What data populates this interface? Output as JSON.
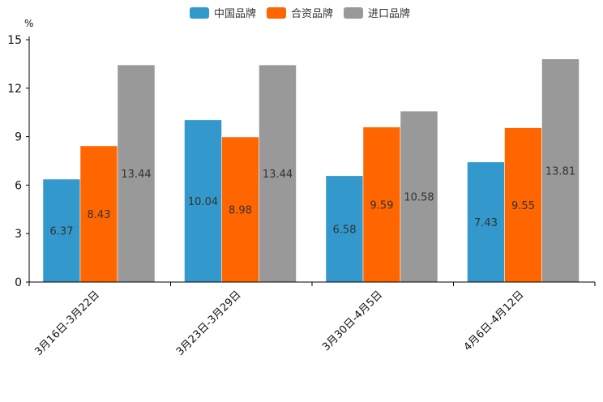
{
  "chart_data": {
    "type": "bar",
    "unit": "%",
    "categories": [
      "3月16日-3月22日",
      "3月23日-3月29日",
      "3月30日-4月5日",
      "4月6日-4月12日"
    ],
    "series": [
      {
        "name": "中国品牌",
        "color": "#3399CC",
        "values": [
          6.37,
          10.04,
          6.58,
          7.43
        ],
        "labels": [
          "6.37",
          "10.04",
          "6.58",
          "7.43"
        ]
      },
      {
        "name": "合资品牌",
        "color": "#FF6600",
        "values": [
          8.43,
          8.98,
          9.59,
          9.55
        ],
        "labels": [
          "8.43",
          "8.98",
          "9.59",
          "9.55"
        ]
      },
      {
        "name": "进口品牌",
        "color": "#999999",
        "values": [
          13.44,
          13.44,
          10.58,
          13.81
        ],
        "labels": [
          "13.44",
          "13.44",
          "10.58",
          "13.81"
        ]
      }
    ],
    "ylim": [
      0,
      15
    ],
    "yticks": [
      "0",
      "3",
      "6",
      "9",
      "12",
      "15"
    ],
    "legend_position": "top-center",
    "grid": false
  }
}
